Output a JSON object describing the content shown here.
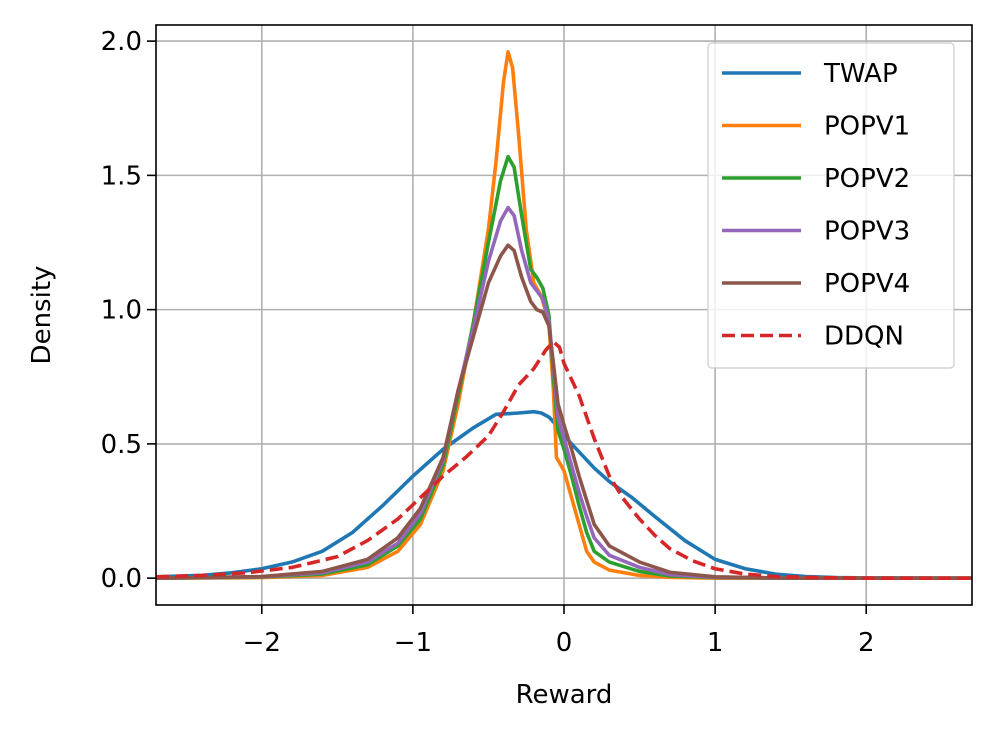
{
  "chart_data": {
    "type": "line",
    "xlabel": "Reward",
    "ylabel": "Density",
    "xlim": [
      -2.7,
      2.7
    ],
    "ylim": [
      -0.1,
      2.06
    ],
    "grid": true,
    "legend_position": "top-right",
    "xticks": [
      -2,
      -1,
      0,
      1,
      2
    ],
    "xtick_labels": [
      "−2",
      "−1",
      "0",
      "1",
      "2"
    ],
    "yticks": [
      0.0,
      0.5,
      1.0,
      1.5,
      2.0
    ],
    "ytick_labels": [
      "0.0",
      "0.5",
      "1.0",
      "1.5",
      "2.0"
    ],
    "series": [
      {
        "name": "TWAP",
        "color": "#1f77b4",
        "dash": "solid",
        "points": [
          [
            -2.7,
            0.005
          ],
          [
            -2.4,
            0.01
          ],
          [
            -2.2,
            0.02
          ],
          [
            -2.0,
            0.035
          ],
          [
            -1.8,
            0.06
          ],
          [
            -1.6,
            0.1
          ],
          [
            -1.4,
            0.17
          ],
          [
            -1.2,
            0.27
          ],
          [
            -1.0,
            0.38
          ],
          [
            -0.8,
            0.48
          ],
          [
            -0.6,
            0.56
          ],
          [
            -0.45,
            0.61
          ],
          [
            -0.3,
            0.615
          ],
          [
            -0.2,
            0.62
          ],
          [
            -0.15,
            0.615
          ],
          [
            -0.1,
            0.6
          ],
          [
            -0.05,
            0.57
          ],
          [
            0.0,
            0.53
          ],
          [
            0.1,
            0.47
          ],
          [
            0.2,
            0.41
          ],
          [
            0.3,
            0.36
          ],
          [
            0.45,
            0.3
          ],
          [
            0.6,
            0.23
          ],
          [
            0.8,
            0.14
          ],
          [
            1.0,
            0.07
          ],
          [
            1.2,
            0.035
          ],
          [
            1.4,
            0.015
          ],
          [
            1.6,
            0.006
          ],
          [
            1.8,
            0.002
          ],
          [
            2.0,
            0.001
          ],
          [
            2.7,
            0.0
          ]
        ]
      },
      {
        "name": "POPV1",
        "color": "#ff7f0e",
        "dash": "solid",
        "points": [
          [
            -2.7,
            0.0
          ],
          [
            -2.0,
            0.002
          ],
          [
            -1.6,
            0.01
          ],
          [
            -1.3,
            0.04
          ],
          [
            -1.1,
            0.1
          ],
          [
            -0.95,
            0.2
          ],
          [
            -0.8,
            0.4
          ],
          [
            -0.7,
            0.65
          ],
          [
            -0.6,
            0.95
          ],
          [
            -0.5,
            1.3
          ],
          [
            -0.45,
            1.55
          ],
          [
            -0.4,
            1.85
          ],
          [
            -0.37,
            1.96
          ],
          [
            -0.34,
            1.9
          ],
          [
            -0.3,
            1.65
          ],
          [
            -0.25,
            1.3
          ],
          [
            -0.2,
            1.1
          ],
          [
            -0.15,
            1.05
          ],
          [
            -0.1,
            0.95
          ],
          [
            -0.07,
            0.7
          ],
          [
            -0.05,
            0.45
          ],
          [
            0.0,
            0.4
          ],
          [
            0.05,
            0.3
          ],
          [
            0.1,
            0.2
          ],
          [
            0.15,
            0.1
          ],
          [
            0.2,
            0.06
          ],
          [
            0.3,
            0.03
          ],
          [
            0.5,
            0.01
          ],
          [
            0.7,
            0.003
          ],
          [
            1.0,
            0.0
          ],
          [
            2.7,
            0.0
          ]
        ]
      },
      {
        "name": "POPV2",
        "color": "#2ca02c",
        "dash": "solid",
        "points": [
          [
            -2.7,
            0.0
          ],
          [
            -2.0,
            0.004
          ],
          [
            -1.6,
            0.015
          ],
          [
            -1.3,
            0.05
          ],
          [
            -1.1,
            0.12
          ],
          [
            -0.95,
            0.22
          ],
          [
            -0.8,
            0.42
          ],
          [
            -0.7,
            0.68
          ],
          [
            -0.6,
            0.95
          ],
          [
            -0.5,
            1.25
          ],
          [
            -0.42,
            1.48
          ],
          [
            -0.37,
            1.57
          ],
          [
            -0.33,
            1.53
          ],
          [
            -0.28,
            1.35
          ],
          [
            -0.22,
            1.15
          ],
          [
            -0.18,
            1.12
          ],
          [
            -0.14,
            1.08
          ],
          [
            -0.1,
            0.98
          ],
          [
            -0.07,
            0.75
          ],
          [
            -0.04,
            0.55
          ],
          [
            0.0,
            0.48
          ],
          [
            0.05,
            0.38
          ],
          [
            0.1,
            0.27
          ],
          [
            0.15,
            0.17
          ],
          [
            0.2,
            0.1
          ],
          [
            0.3,
            0.06
          ],
          [
            0.5,
            0.025
          ],
          [
            0.7,
            0.008
          ],
          [
            1.0,
            0.002
          ],
          [
            1.5,
            0.0
          ],
          [
            2.7,
            0.0
          ]
        ]
      },
      {
        "name": "POPV3",
        "color": "#9467bd",
        "dash": "solid",
        "points": [
          [
            -2.7,
            0.0
          ],
          [
            -2.0,
            0.005
          ],
          [
            -1.6,
            0.02
          ],
          [
            -1.3,
            0.06
          ],
          [
            -1.1,
            0.13
          ],
          [
            -0.95,
            0.24
          ],
          [
            -0.8,
            0.44
          ],
          [
            -0.7,
            0.7
          ],
          [
            -0.6,
            0.93
          ],
          [
            -0.5,
            1.18
          ],
          [
            -0.42,
            1.33
          ],
          [
            -0.37,
            1.38
          ],
          [
            -0.33,
            1.35
          ],
          [
            -0.28,
            1.22
          ],
          [
            -0.22,
            1.1
          ],
          [
            -0.18,
            1.07
          ],
          [
            -0.14,
            1.04
          ],
          [
            -0.1,
            0.96
          ],
          [
            -0.07,
            0.78
          ],
          [
            -0.04,
            0.6
          ],
          [
            0.0,
            0.52
          ],
          [
            0.05,
            0.42
          ],
          [
            0.1,
            0.32
          ],
          [
            0.15,
            0.23
          ],
          [
            0.2,
            0.15
          ],
          [
            0.3,
            0.085
          ],
          [
            0.5,
            0.04
          ],
          [
            0.7,
            0.013
          ],
          [
            1.0,
            0.003
          ],
          [
            1.5,
            0.0
          ],
          [
            2.7,
            0.0
          ]
        ]
      },
      {
        "name": "POPV4",
        "color": "#8c564b",
        "dash": "solid",
        "points": [
          [
            -2.7,
            0.0
          ],
          [
            -2.0,
            0.006
          ],
          [
            -1.6,
            0.025
          ],
          [
            -1.3,
            0.07
          ],
          [
            -1.1,
            0.15
          ],
          [
            -0.95,
            0.26
          ],
          [
            -0.8,
            0.45
          ],
          [
            -0.7,
            0.7
          ],
          [
            -0.6,
            0.9
          ],
          [
            -0.5,
            1.1
          ],
          [
            -0.42,
            1.2
          ],
          [
            -0.37,
            1.24
          ],
          [
            -0.33,
            1.22
          ],
          [
            -0.28,
            1.12
          ],
          [
            -0.22,
            1.03
          ],
          [
            -0.18,
            1.0
          ],
          [
            -0.14,
            0.99
          ],
          [
            -0.1,
            0.94
          ],
          [
            -0.07,
            0.8
          ],
          [
            -0.04,
            0.65
          ],
          [
            0.0,
            0.57
          ],
          [
            0.05,
            0.48
          ],
          [
            0.1,
            0.38
          ],
          [
            0.15,
            0.29
          ],
          [
            0.2,
            0.2
          ],
          [
            0.3,
            0.12
          ],
          [
            0.5,
            0.06
          ],
          [
            0.7,
            0.022
          ],
          [
            1.0,
            0.005
          ],
          [
            1.5,
            0.0
          ],
          [
            2.7,
            0.0
          ]
        ]
      },
      {
        "name": "DDQN",
        "color": "#d62728",
        "dash": "dashed",
        "points": [
          [
            -2.7,
            0.005
          ],
          [
            -2.4,
            0.01
          ],
          [
            -2.1,
            0.02
          ],
          [
            -1.8,
            0.04
          ],
          [
            -1.5,
            0.08
          ],
          [
            -1.3,
            0.14
          ],
          [
            -1.1,
            0.22
          ],
          [
            -0.95,
            0.3
          ],
          [
            -0.8,
            0.38
          ],
          [
            -0.65,
            0.45
          ],
          [
            -0.5,
            0.53
          ],
          [
            -0.4,
            0.62
          ],
          [
            -0.3,
            0.72
          ],
          [
            -0.2,
            0.78
          ],
          [
            -0.12,
            0.85
          ],
          [
            -0.07,
            0.88
          ],
          [
            -0.03,
            0.86
          ],
          [
            0.0,
            0.8
          ],
          [
            0.1,
            0.68
          ],
          [
            0.2,
            0.52
          ],
          [
            0.3,
            0.38
          ],
          [
            0.4,
            0.29
          ],
          [
            0.5,
            0.22
          ],
          [
            0.6,
            0.16
          ],
          [
            0.7,
            0.11
          ],
          [
            0.85,
            0.065
          ],
          [
            1.0,
            0.035
          ],
          [
            1.2,
            0.015
          ],
          [
            1.4,
            0.006
          ],
          [
            1.7,
            0.002
          ],
          [
            2.0,
            0.0
          ],
          [
            2.7,
            0.0
          ]
        ]
      }
    ]
  }
}
